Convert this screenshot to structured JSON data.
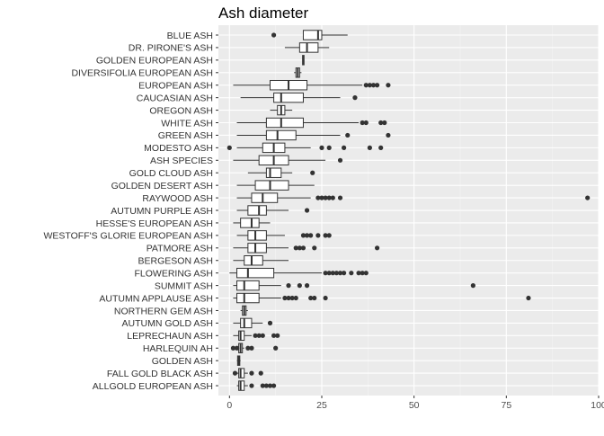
{
  "chart_data": {
    "type": "boxplot",
    "title": "Ash diameter",
    "xlabel": "",
    "ylabel": "",
    "xlim": [
      -3,
      100
    ],
    "x_ticks": [
      0,
      25,
      50,
      75,
      100
    ],
    "x_tick_labels": [
      "0",
      "25",
      "50",
      "75",
      "100"
    ],
    "grid": true,
    "orientation": "horizontal",
    "categories": [
      "BLUE ASH",
      "DR. PIRONE'S ASH",
      "GOLDEN EUROPEAN ASH",
      "DIVERSIFOLIA EUROPEAN ASH",
      "EUROPEAN ASH",
      "CAUCASIAN ASH",
      "OREGON ASH",
      "WHITE ASH",
      "GREEN ASH",
      "MODESTO ASH",
      "ASH SPECIES",
      "GOLD CLOUD ASH",
      "GOLDEN DESERT ASH",
      "RAYWOOD ASH",
      "AUTUMN PURPLE ASH",
      "HESSE'S EUROPEAN ASH",
      "WESTOFF'S GLORIE EUROPEAN ASH",
      "PATMORE ASH",
      "BERGESON ASH",
      "FLOWERING ASH",
      "SUMMIT ASH",
      "AUTUMN APPLAUSE ASH",
      "NORTHERN GEM ASH",
      "AUTUMN GOLD ASH",
      "LEPRECHAUN ASH",
      "HARLEQUIN AH",
      "GOLDEN ASH",
      "FALL GOLD BLACK ASH",
      "ALLGOLD EUROPEAN ASH"
    ],
    "boxes": [
      {
        "category": "BLUE ASH",
        "whisker_low": 20,
        "q1": 20,
        "median": 24,
        "q3": 25,
        "whisker_high": 32,
        "outliers": [
          12
        ]
      },
      {
        "category": "DR. PIRONE'S ASH",
        "whisker_low": 15,
        "q1": 19,
        "median": 21,
        "q3": 24,
        "whisker_high": 27,
        "outliers": []
      },
      {
        "category": "GOLDEN EUROPEAN ASH",
        "whisker_low": 19.8,
        "q1": 19.8,
        "median": 20,
        "q3": 20.2,
        "whisker_high": 20.2,
        "outliers": []
      },
      {
        "category": "DIVERSIFOLIA EUROPEAN ASH",
        "whisker_low": 17.5,
        "q1": 18,
        "median": 18.5,
        "q3": 19,
        "whisker_high": 19.5,
        "outliers": []
      },
      {
        "category": "EUROPEAN ASH",
        "whisker_low": 1,
        "q1": 11,
        "median": 16,
        "q3": 21,
        "whisker_high": 36,
        "outliers": [
          37,
          38,
          39,
          40,
          43
        ]
      },
      {
        "category": "CAUCASIAN ASH",
        "whisker_low": 3,
        "q1": 12,
        "median": 14,
        "q3": 20,
        "whisker_high": 30,
        "outliers": [
          34
        ]
      },
      {
        "category": "OREGON ASH",
        "whisker_low": 11,
        "q1": 13,
        "median": 14,
        "q3": 15,
        "whisker_high": 17,
        "outliers": []
      },
      {
        "category": "WHITE ASH",
        "whisker_low": 2,
        "q1": 10,
        "median": 14,
        "q3": 20,
        "whisker_high": 35,
        "outliers": [
          36,
          37,
          41,
          42
        ]
      },
      {
        "category": "GREEN ASH",
        "whisker_low": 2,
        "q1": 10,
        "median": 13,
        "q3": 18,
        "whisker_high": 30,
        "outliers": [
          32,
          43
        ]
      },
      {
        "category": "MODESTO ASH",
        "whisker_low": 2,
        "q1": 9,
        "median": 12,
        "q3": 15,
        "whisker_high": 22,
        "outliers": [
          0,
          25,
          27,
          31,
          38,
          41
        ]
      },
      {
        "category": "ASH SPECIES",
        "whisker_low": 1,
        "q1": 8,
        "median": 12,
        "q3": 16,
        "whisker_high": 26,
        "outliers": [
          30
        ]
      },
      {
        "category": "GOLD CLOUD ASH",
        "whisker_low": 5,
        "q1": 10,
        "median": 11,
        "q3": 14,
        "whisker_high": 17,
        "outliers": [
          22.5
        ]
      },
      {
        "category": "GOLDEN DESERT ASH",
        "whisker_low": 2,
        "q1": 7,
        "median": 11,
        "q3": 16,
        "whisker_high": 23,
        "outliers": []
      },
      {
        "category": "RAYWOOD ASH",
        "whisker_low": 2,
        "q1": 6,
        "median": 9,
        "q3": 13,
        "whisker_high": 22,
        "outliers": [
          24,
          25,
          26,
          27,
          28,
          30,
          97
        ]
      },
      {
        "category": "AUTUMN PURPLE ASH",
        "whisker_low": 2,
        "q1": 5,
        "median": 8,
        "q3": 10,
        "whisker_high": 16,
        "outliers": [
          21
        ]
      },
      {
        "category": "HESSE'S EUROPEAN ASH",
        "whisker_low": 1,
        "q1": 3,
        "median": 6,
        "q3": 8,
        "whisker_high": 11,
        "outliers": []
      },
      {
        "category": "WESTOFF'S GLORIE EUROPEAN ASH",
        "whisker_low": 2,
        "q1": 5,
        "median": 7,
        "q3": 10,
        "whisker_high": 15,
        "outliers": [
          20,
          21,
          22,
          24,
          26,
          27
        ]
      },
      {
        "category": "PATMORE ASH",
        "whisker_low": 1,
        "q1": 5,
        "median": 7,
        "q3": 10,
        "whisker_high": 16,
        "outliers": [
          18,
          19,
          20,
          23,
          40
        ]
      },
      {
        "category": "BERGESON ASH",
        "whisker_low": 1,
        "q1": 4,
        "median": 6,
        "q3": 9,
        "whisker_high": 16,
        "outliers": []
      },
      {
        "category": "FLOWERING ASH",
        "whisker_low": 0,
        "q1": 2,
        "median": 5,
        "q3": 12,
        "whisker_high": 25,
        "outliers": [
          26,
          27,
          28,
          29,
          30,
          31,
          33,
          35,
          36,
          37
        ]
      },
      {
        "category": "SUMMIT ASH",
        "whisker_low": 1,
        "q1": 2,
        "median": 4,
        "q3": 8,
        "whisker_high": 14,
        "outliers": [
          16,
          19,
          21,
          66
        ]
      },
      {
        "category": "AUTUMN APPLAUSE ASH",
        "whisker_low": 1,
        "q1": 2,
        "median": 4,
        "q3": 8,
        "whisker_high": 14,
        "outliers": [
          15,
          16,
          17,
          18,
          22,
          23,
          26,
          81
        ]
      },
      {
        "category": "NORTHERN GEM ASH",
        "whisker_low": 3,
        "q1": 3.5,
        "median": 4,
        "q3": 4.5,
        "whisker_high": 5,
        "outliers": []
      },
      {
        "category": "AUTUMN GOLD ASH",
        "whisker_low": 1,
        "q1": 3,
        "median": 4,
        "q3": 6,
        "whisker_high": 9,
        "outliers": [
          11
        ]
      },
      {
        "category": "LEPRECHAUN ASH",
        "whisker_low": 1,
        "q1": 2.5,
        "median": 3,
        "q3": 4,
        "whisker_high": 6,
        "outliers": [
          7,
          8,
          9,
          12,
          13
        ]
      },
      {
        "category": "HARLEQUIN AH",
        "whisker_low": 2,
        "q1": 2.5,
        "median": 3,
        "q3": 3.5,
        "whisker_high": 4,
        "outliers": [
          1,
          2,
          5,
          6,
          12.5
        ]
      },
      {
        "category": "GOLDEN ASH",
        "whisker_low": 2,
        "q1": 2.2,
        "median": 2.5,
        "q3": 2.8,
        "whisker_high": 3,
        "outliers": []
      },
      {
        "category": "FALL GOLD BLACK ASH",
        "whisker_low": 2,
        "q1": 2.5,
        "median": 3,
        "q3": 4,
        "whisker_high": 5,
        "outliers": [
          1.5,
          6,
          8.5
        ]
      },
      {
        "category": "ALLGOLD EUROPEAN ASH",
        "whisker_low": 2,
        "q1": 2.5,
        "median": 3,
        "q3": 4,
        "whisker_high": 5,
        "outliers": [
          6,
          9,
          10,
          11,
          12
        ]
      }
    ]
  },
  "colors": {
    "panel_background": "#ebebeb",
    "grid_major": "#ffffff",
    "grid_minor": "#f5f5f5",
    "box_fill": "#ffffff",
    "box_stroke": "#333333",
    "outlier": "#333333"
  }
}
